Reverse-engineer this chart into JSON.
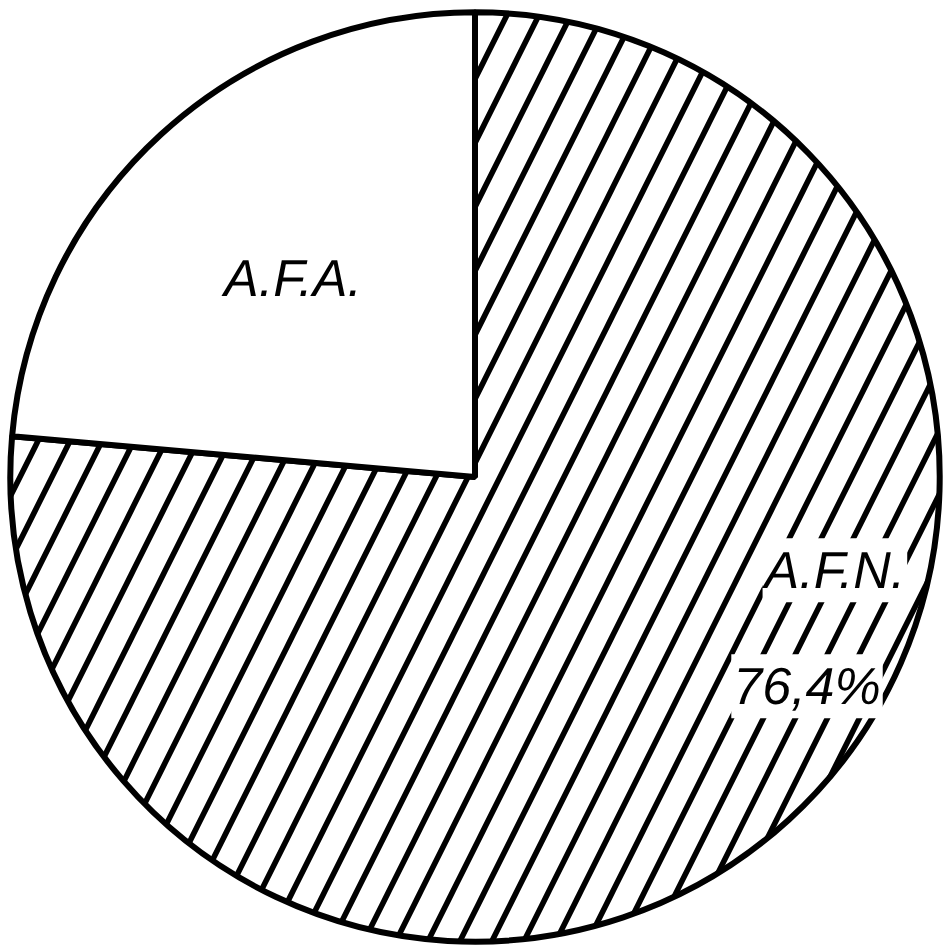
{
  "chart_data": {
    "type": "pie",
    "categories": [
      "A.F.N.",
      "A.F.A."
    ],
    "values": [
      76.4,
      23.6
    ],
    "colors": [
      "#000000",
      "#ffffff"
    ],
    "value_labels": [
      "76,4%",
      null
    ]
  }
}
